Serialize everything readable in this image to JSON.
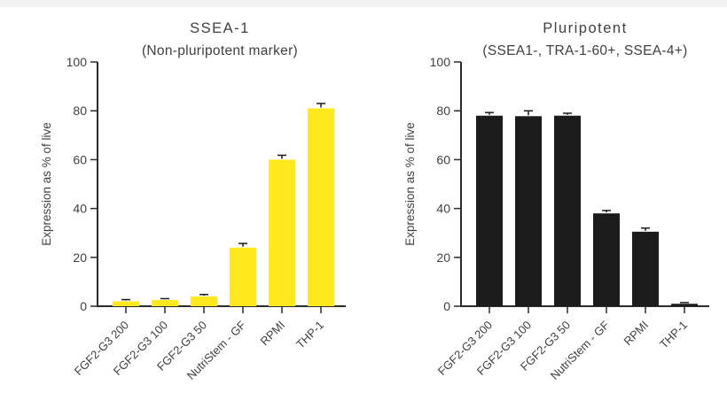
{
  "page": {
    "background": "#ffffff",
    "top_strip_color": "#f1f1f1"
  },
  "chart_data": [
    {
      "type": "bar",
      "title": "SSEA-1",
      "subtitle": "(Non-pluripotent marker)",
      "ylabel": "Expression as % of live",
      "xlabel": "",
      "ylim": [
        0,
        100
      ],
      "yticks": [
        0,
        20,
        40,
        60,
        80,
        100
      ],
      "categories": [
        "FGF2-G3 200",
        "FGF2-G3 100",
        "FGF2-G3 50",
        "NutriStem - GF",
        "RPMI",
        "THP-1"
      ],
      "values": [
        2,
        2.5,
        4,
        24,
        60,
        81
      ],
      "errors": [
        0.7,
        0.6,
        0.8,
        1.7,
        1.8,
        2
      ],
      "error_style": "upper whisker with cap",
      "bar_color": "#FFE91E",
      "error_color": "#1b1b1b",
      "axis_color": "#2b2b2b",
      "text_color": "#3f3f3f",
      "grid": false,
      "legend": "none"
    },
    {
      "type": "bar",
      "title": "Pluripotent",
      "subtitle": "(SSEA1-, TRA-1-60+, SSEA-4+)",
      "ylabel": "Expression as % of live",
      "xlabel": "",
      "ylim": [
        0,
        100
      ],
      "yticks": [
        0,
        20,
        40,
        60,
        80,
        100
      ],
      "categories": [
        "FGF2-G3 200",
        "FGF2-G3 100",
        "FGF2-G3 50",
        "NutriStem - GF",
        "RPMI",
        "THP-1"
      ],
      "values": [
        78,
        77.8,
        78,
        38,
        30.5,
        1
      ],
      "errors": [
        1.3,
        2.2,
        1,
        1.2,
        1.5,
        0.5
      ],
      "error_style": "upper whisker with cap",
      "bar_color": "#1b1b1b",
      "error_color": "#1b1b1b",
      "axis_color": "#2b2b2b",
      "text_color": "#3f3f3f",
      "grid": false,
      "legend": "none"
    }
  ]
}
